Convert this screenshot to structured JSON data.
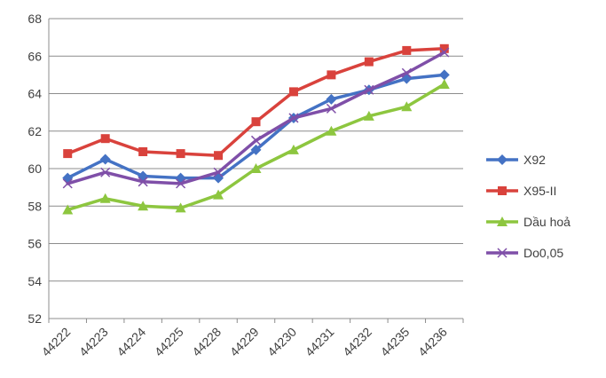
{
  "chart_data": {
    "type": "line",
    "title": "",
    "xlabel": "",
    "ylabel": "",
    "categories": [
      "44222",
      "44223",
      "44224",
      "44225",
      "44228",
      "44229",
      "44230",
      "44231",
      "44232",
      "44235",
      "44236"
    ],
    "ylim": [
      52,
      68
    ],
    "yticks": [
      52,
      54,
      56,
      58,
      60,
      62,
      64,
      66,
      68
    ],
    "grid": true,
    "legend_position": "right",
    "series": [
      {
        "name": "X92",
        "color": "#4472C4",
        "marker": "diamond",
        "values": [
          59.5,
          60.5,
          59.6,
          59.5,
          59.5,
          61.0,
          62.7,
          63.7,
          64.2,
          64.8,
          65.0
        ]
      },
      {
        "name": "X95-II",
        "color": "#D9423C",
        "marker": "square",
        "values": [
          60.8,
          61.6,
          60.9,
          60.8,
          60.7,
          62.5,
          64.1,
          65.0,
          65.7,
          66.3,
          66.4
        ]
      },
      {
        "name": "Dầu hoả",
        "color": "#8DC63F",
        "marker": "triangle",
        "values": [
          57.8,
          58.4,
          58.0,
          57.9,
          58.6,
          60.0,
          61.0,
          62.0,
          62.8,
          63.3,
          64.5
        ]
      },
      {
        "name": "Do0,05",
        "color": "#7F4FA8",
        "marker": "x",
        "values": [
          59.2,
          59.8,
          59.3,
          59.2,
          59.8,
          61.5,
          62.7,
          63.2,
          64.2,
          65.1,
          66.2
        ]
      }
    ]
  }
}
